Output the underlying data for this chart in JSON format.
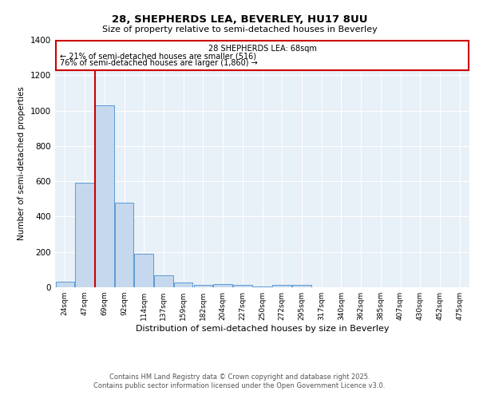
{
  "title1": "28, SHEPHERDS LEA, BEVERLEY, HU17 8UU",
  "title2": "Size of property relative to semi-detached houses in Beverley",
  "xlabel": "Distribution of semi-detached houses by size in Beverley",
  "ylabel": "Number of semi-detached properties",
  "bar_labels": [
    "24sqm",
    "47sqm",
    "69sqm",
    "92sqm",
    "114sqm",
    "137sqm",
    "159sqm",
    "182sqm",
    "204sqm",
    "227sqm",
    "250sqm",
    "272sqm",
    "295sqm",
    "317sqm",
    "340sqm",
    "362sqm",
    "385sqm",
    "407sqm",
    "430sqm",
    "452sqm",
    "475sqm"
  ],
  "bar_values": [
    30,
    590,
    1030,
    480,
    190,
    70,
    25,
    15,
    20,
    15,
    5,
    15,
    15,
    0,
    0,
    0,
    0,
    0,
    0,
    0,
    0
  ],
  "bar_color": "#c5d8ed",
  "bar_edge_color": "#5b9bd5",
  "property_line_color": "#cc0000",
  "annotation_title": "28 SHEPHERDS LEA: 68sqm",
  "annotation_line1": "← 21% of semi-detached houses are smaller (516)",
  "annotation_line2": "76% of semi-detached houses are larger (1,860) →",
  "annotation_box_color": "#cc0000",
  "ylim": [
    0,
    1400
  ],
  "yticks": [
    0,
    200,
    400,
    600,
    800,
    1000,
    1200,
    1400
  ],
  "background_color": "#e8f0f8",
  "grid_color": "#ffffff",
  "footer1": "Contains HM Land Registry data © Crown copyright and database right 2025.",
  "footer2": "Contains public sector information licensed under the Open Government Licence v3.0."
}
